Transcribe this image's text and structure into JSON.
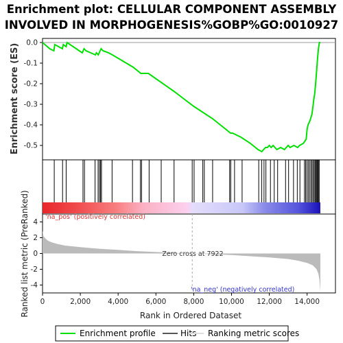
{
  "title_line1": "Enrichment plot: CELLULAR COMPONENT ASSEMBLY",
  "title_line2": "INVOLVED IN MORPHOGENESIS%GOBP%GO:0010927",
  "colors": {
    "profile": "#00e000",
    "pos_label": "#dd3333",
    "neg_label": "#3333cc",
    "metric_fill": "#bbbbbb",
    "zero_line": "#999999"
  },
  "legend": {
    "profile": "Enrichment profile",
    "hits": "Hits",
    "ranking": "Ranking metric scores"
  },
  "annotations": {
    "zero_cross": "Zero cross at 7922",
    "na_pos": "'na_pos' (positively correlated)",
    "na_neg": "'na_neg' (negatively correlated)"
  },
  "chart_data": {
    "type": "line",
    "total_genes": 14700,
    "zero_cross": 7922,
    "es_panel": {
      "ylabel": "Enrichment score (ES)",
      "ylim": [
        -0.57,
        0.02
      ],
      "yticks": [
        0.0,
        -0.1,
        -0.2,
        -0.3,
        -0.4,
        -0.5
      ],
      "ytick_labels": [
        "0.0",
        "-0.1",
        "-0.2",
        "-0.3",
        "-0.4",
        "-0.5"
      ],
      "profile": {
        "x": [
          0,
          380,
          600,
          650,
          1050,
          1100,
          1250,
          1300,
          2100,
          2200,
          2300,
          2800,
          2850,
          2950,
          3000,
          3050,
          3100,
          3200,
          3500,
          3700,
          4800,
          5200,
          5600,
          7000,
          8000,
          9000,
          9950,
          10050,
          10500,
          11000,
          11400,
          11600,
          11700,
          11800,
          11900,
          12000,
          12100,
          12200,
          12300,
          12400,
          12600,
          12800,
          13000,
          13100,
          13300,
          13500,
          13600,
          13800,
          13950,
          14000,
          14050,
          14150,
          14250,
          14300,
          14350,
          14400,
          14450,
          14500,
          14550,
          14600,
          14650,
          14700
        ],
        "y": [
          0.0,
          -0.03,
          -0.04,
          -0.01,
          -0.03,
          -0.01,
          -0.02,
          0.0,
          -0.05,
          -0.03,
          -0.04,
          -0.06,
          -0.05,
          -0.06,
          -0.05,
          -0.04,
          -0.03,
          -0.04,
          -0.05,
          -0.06,
          -0.12,
          -0.15,
          -0.15,
          -0.24,
          -0.31,
          -0.37,
          -0.44,
          -0.44,
          -0.46,
          -0.49,
          -0.52,
          -0.53,
          -0.52,
          -0.51,
          -0.51,
          -0.5,
          -0.51,
          -0.5,
          -0.51,
          -0.52,
          -0.51,
          -0.52,
          -0.5,
          -0.51,
          -0.5,
          -0.51,
          -0.5,
          -0.49,
          -0.47,
          -0.42,
          -0.4,
          -0.38,
          -0.35,
          -0.32,
          -0.28,
          -0.25,
          -0.2,
          -0.14,
          -0.08,
          -0.03,
          0.0,
          0.0
        ]
      }
    },
    "hits": [
      620,
      1060,
      1250,
      2140,
      2220,
      2780,
      2940,
      3010,
      3070,
      3120,
      3680,
      4760,
      5180,
      5240,
      5640,
      6280,
      6960,
      7920,
      8020,
      8480,
      8560,
      9000,
      9900,
      9960,
      10160,
      10560,
      11440,
      11600,
      11720,
      11820,
      12060,
      12260,
      12440,
      12860,
      13020,
      13280,
      13480,
      13620,
      13860,
      13920,
      13990,
      14060,
      14130,
      14200,
      14260,
      14320,
      14380,
      14430,
      14480,
      14520,
      14560,
      14600,
      14640
    ],
    "metric_panel": {
      "ylabel": "Ranked list metric (PreRanked)",
      "ylim": [
        -5,
        5
      ],
      "yticks": [
        4,
        2,
        0,
        -2,
        -4
      ],
      "ytick_labels": [
        "4",
        "2",
        "0",
        "-2",
        "-4"
      ],
      "x": [
        0,
        50,
        150,
        300,
        500,
        800,
        1200,
        2000,
        3000,
        4000,
        5000,
        6000,
        7000,
        7922,
        9000,
        10000,
        11000,
        12000,
        13000,
        13500,
        14000,
        14300,
        14500,
        14600,
        14650,
        14700
      ],
      "y": [
        2.9,
        2.2,
        1.9,
        1.6,
        1.4,
        1.2,
        1.0,
        0.8,
        0.6,
        0.45,
        0.3,
        0.18,
        0.08,
        0.0,
        -0.1,
        -0.2,
        -0.35,
        -0.5,
        -0.7,
        -0.9,
        -1.2,
        -1.5,
        -2.0,
        -2.6,
        -3.3,
        -4.8
      ]
    },
    "xlabel": "Rank in Ordered Dataset",
    "xlim": [
      0,
      15500
    ],
    "xticks": [
      0,
      2000,
      4000,
      6000,
      8000,
      10000,
      12000,
      14000
    ],
    "xtick_labels": [
      "0",
      "2,000",
      "4,000",
      "6,000",
      "8,000",
      "10,000",
      "12,000",
      "14,000"
    ],
    "grid": false
  }
}
